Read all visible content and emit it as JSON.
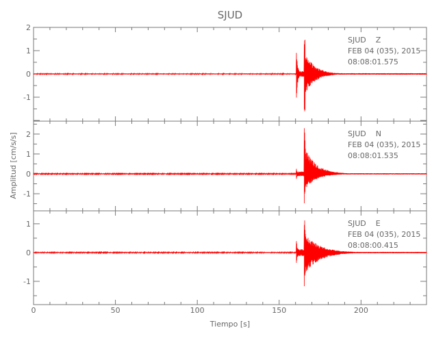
{
  "chart_data": {
    "type": "line",
    "title": "SJUD",
    "xlabel": "Tiempo [s]",
    "ylabel": "Amplitud [cm/s/s]",
    "xlim": [
      0,
      240
    ],
    "xticks": [
      0,
      50,
      100,
      150,
      200
    ],
    "line_color": "#ff0000",
    "axis_color": "#777777",
    "grid": false,
    "panels": [
      {
        "station": "SJUD",
        "component": "Z",
        "date": "FEB 04 (035), 2015",
        "time": "08:08:01.575",
        "ylim": [
          -2.03,
          2.0
        ],
        "yticks": [
          2,
          1,
          0,
          -1
        ],
        "noise": 0.02,
        "p_arrival": 160.5,
        "s_arrival": 165.3,
        "p_peak": [
          1.1,
          -1.2
        ],
        "s_peak": [
          1.9,
          -1.7
        ],
        "coda_decay": 6
      },
      {
        "station": "SJUD",
        "component": "N",
        "date": "FEB 04 (035), 2015",
        "time": "08:08:01.535",
        "ylim": [
          -1.86,
          2.65
        ],
        "yticks": [
          2,
          1,
          0,
          -1
        ],
        "noise": 0.02,
        "p_arrival": 160.5,
        "s_arrival": 165.3,
        "p_peak": [
          0.3,
          -0.3
        ],
        "s_peak": [
          2.55,
          -1.5
        ],
        "coda_decay": 7
      },
      {
        "station": "SJUD",
        "component": "E",
        "date": "FEB 04 (035), 2015",
        "time": "08:08:00.415",
        "ylim": [
          -1.81,
          1.45
        ],
        "yticks": [
          1,
          0,
          -1
        ],
        "noise": 0.015,
        "p_arrival": 160.5,
        "s_arrival": 165.3,
        "p_peak": [
          0.5,
          -0.4
        ],
        "s_peak": [
          1.3,
          -1.4
        ],
        "coda_decay": 9
      }
    ]
  }
}
